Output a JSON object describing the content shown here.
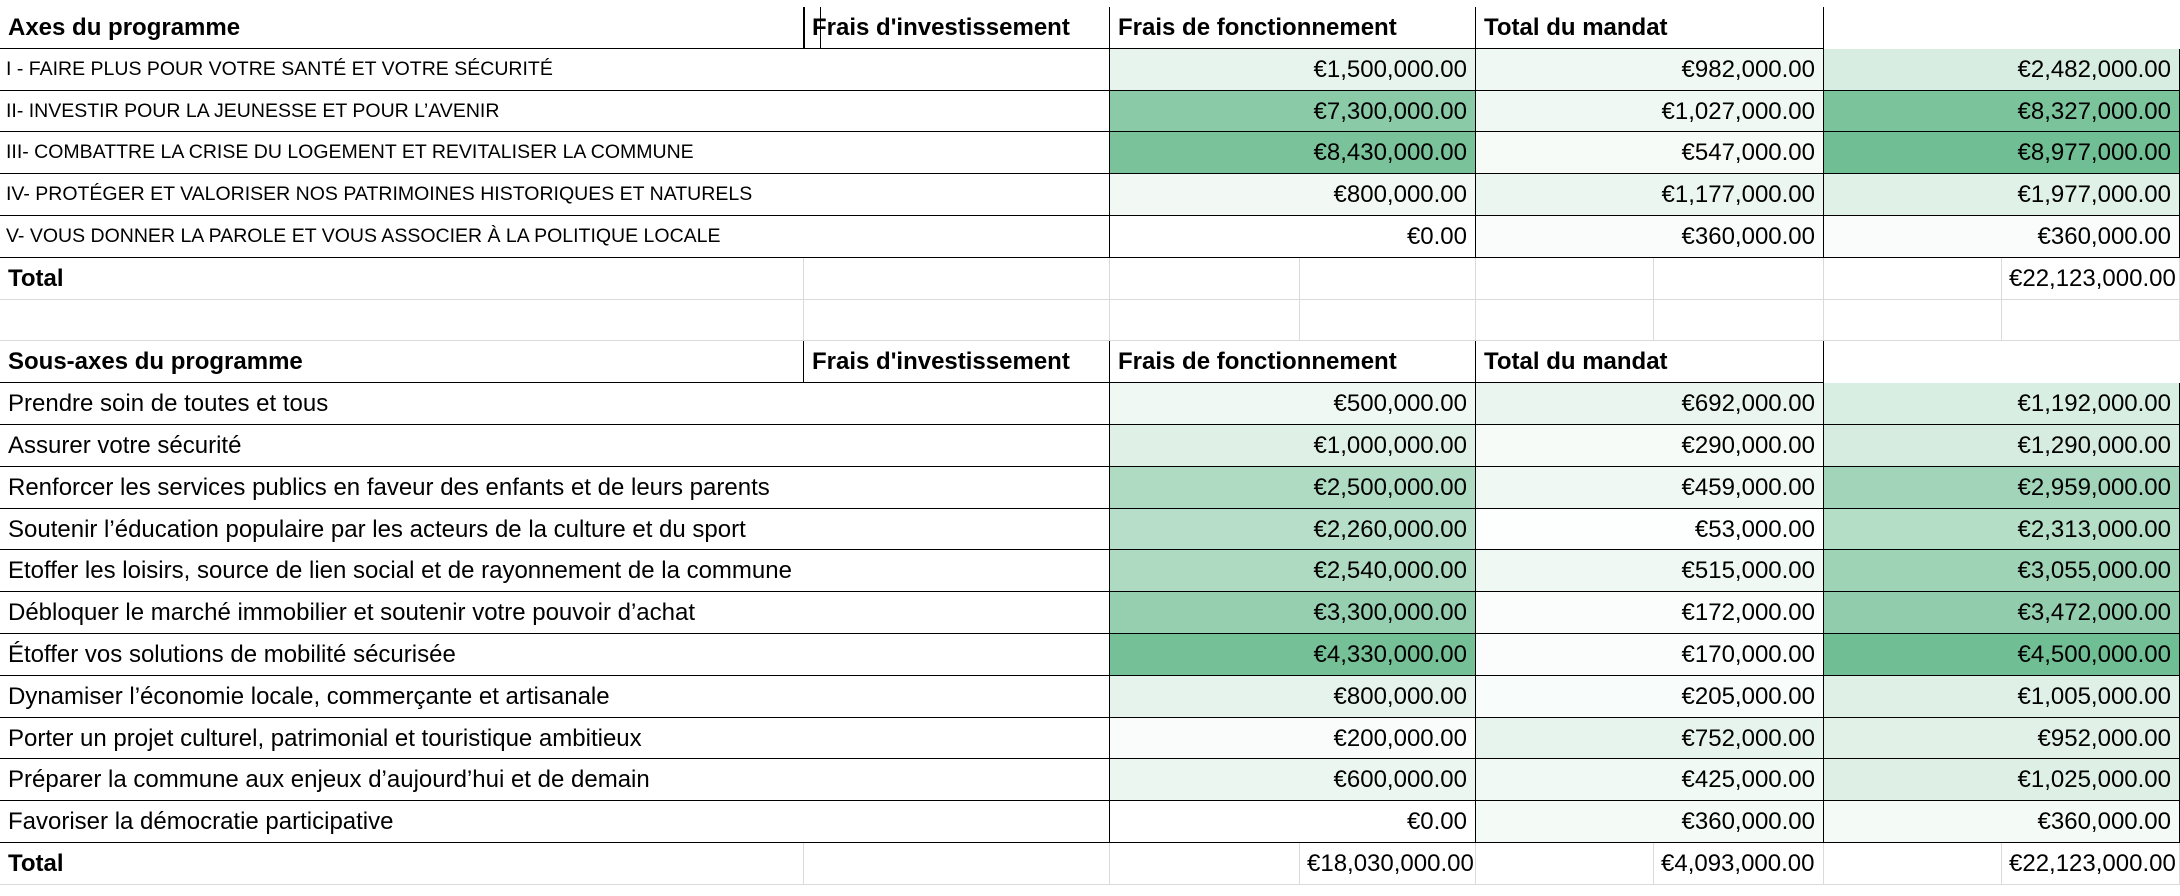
{
  "tables": [
    {
      "header": [
        "Axes du programme",
        "Frais d'investissement",
        "Frais de fonctionnement",
        "Total du mandat"
      ],
      "rows": [
        {
          "label": "I - FAIRE PLUS POUR VOTRE SANTÉ ET VOTRE SÉCURITÉ",
          "values": [
            {
              "value": 1500000,
              "label": "€1,500,000.00"
            },
            {
              "value": 982000,
              "label": "€982,000.00"
            },
            {
              "value": 2482000,
              "label": "€2,482,000.00"
            }
          ]
        },
        {
          "label": "II- INVESTIR POUR LA JEUNESSE ET POUR L’AVENIR",
          "values": [
            {
              "value": 7300000,
              "label": "€7,300,000.00"
            },
            {
              "value": 1027000,
              "label": "€1,027,000.00"
            },
            {
              "value": 8327000,
              "label": "€8,327,000.00"
            }
          ]
        },
        {
          "label": "III- COMBATTRE LA CRISE DU LOGEMENT ET REVITALISER LA COMMUNE",
          "values": [
            {
              "value": 8430000,
              "label": "€8,430,000.00"
            },
            {
              "value": 547000,
              "label": "€547,000.00"
            },
            {
              "value": 8977000,
              "label": "€8,977,000.00"
            }
          ]
        },
        {
          "label": "IV- PROTÉGER ET VALORISER NOS PATRIMOINES HISTORIQUES ET NATURELS",
          "values": [
            {
              "value": 800000,
              "label": "€800,000.00"
            },
            {
              "value": 1177000,
              "label": "€1,177,000.00"
            },
            {
              "value": 1977000,
              "label": "€1,977,000.00"
            }
          ]
        },
        {
          "label": "V- VOUS DONNER LA PAROLE ET VOUS ASSOCIER À LA POLITIQUE LOCALE",
          "values": [
            {
              "value": 0,
              "label": "€0.00"
            },
            {
              "value": 360000,
              "label": "€360,000.00"
            },
            {
              "value": 360000,
              "label": "€360,000.00"
            }
          ]
        }
      ],
      "total": {
        "label": "Total",
        "values": [
          null,
          null,
          {
            "value": 22123000,
            "label": "€22,123,000.00"
          }
        ]
      }
    },
    {
      "header": [
        "Sous-axes du programme",
        "Frais d'investissement",
        "Frais de fonctionnement",
        "Total du mandat"
      ],
      "rows": [
        {
          "label": "Prendre soin de toutes et tous",
          "values": [
            {
              "value": 500000,
              "label": "€500,000.00"
            },
            {
              "value": 692000,
              "label": "€692,000.00"
            },
            {
              "value": 1192000,
              "label": "€1,192,000.00"
            }
          ]
        },
        {
          "label": "Assurer votre sécurité",
          "values": [
            {
              "value": 1000000,
              "label": "€1,000,000.00"
            },
            {
              "value": 290000,
              "label": "€290,000.00"
            },
            {
              "value": 1290000,
              "label": "€1,290,000.00"
            }
          ]
        },
        {
          "label": "Renforcer les services publics en faveur des enfants et de leurs parents",
          "values": [
            {
              "value": 2500000,
              "label": "€2,500,000.00"
            },
            {
              "value": 459000,
              "label": "€459,000.00"
            },
            {
              "value": 2959000,
              "label": "€2,959,000.00"
            }
          ]
        },
        {
          "label": "Soutenir l’éducation populaire par les acteurs de la culture et du sport",
          "values": [
            {
              "value": 2260000,
              "label": "€2,260,000.00"
            },
            {
              "value": 53000,
              "label": "€53,000.00"
            },
            {
              "value": 2313000,
              "label": "€2,313,000.00"
            }
          ]
        },
        {
          "label": "Etoffer les loisirs, source de lien social et de rayonnement de la commune",
          "values": [
            {
              "value": 2540000,
              "label": "€2,540,000.00"
            },
            {
              "value": 515000,
              "label": "€515,000.00"
            },
            {
              "value": 3055000,
              "label": "€3,055,000.00"
            }
          ]
        },
        {
          "label": "Débloquer le marché immobilier et soutenir votre pouvoir d’achat",
          "values": [
            {
              "value": 3300000,
              "label": "€3,300,000.00"
            },
            {
              "value": 172000,
              "label": "€172,000.00"
            },
            {
              "value": 3472000,
              "label": "€3,472,000.00"
            }
          ]
        },
        {
          "label": "Étoffer vos solutions de mobilité sécurisée",
          "values": [
            {
              "value": 4330000,
              "label": "€4,330,000.00"
            },
            {
              "value": 170000,
              "label": "€170,000.00"
            },
            {
              "value": 4500000,
              "label": "€4,500,000.00"
            }
          ]
        },
        {
          "label": "Dynamiser l’économie locale, commerçante et artisanale",
          "values": [
            {
              "value": 800000,
              "label": "€800,000.00"
            },
            {
              "value": 205000,
              "label": "€205,000.00"
            },
            {
              "value": 1005000,
              "label": "€1,005,000.00"
            }
          ]
        },
        {
          "label": "Porter un projet culturel, patrimonial et touristique ambitieux",
          "values": [
            {
              "value": 200000,
              "label": "€200,000.00"
            },
            {
              "value": 752000,
              "label": "€752,000.00"
            },
            {
              "value": 952000,
              "label": "€952,000.00"
            }
          ]
        },
        {
          "label": "Préparer la commune aux enjeux d’aujourd’hui et de demain",
          "values": [
            {
              "value": 600000,
              "label": "€600,000.00"
            },
            {
              "value": 425000,
              "label": "€425,000.00"
            },
            {
              "value": 1025000,
              "label": "€1,025,000.00"
            }
          ]
        },
        {
          "label": "Favoriser la démocratie participative",
          "values": [
            {
              "value": 0,
              "label": "€0.00"
            },
            {
              "value": 360000,
              "label": "€360,000.00"
            },
            {
              "value": 360000,
              "label": "€360,000.00"
            }
          ]
        }
      ],
      "total": {
        "label": "Total",
        "values": [
          {
            "value": 18030000,
            "label": "€18,030,000.00"
          },
          {
            "value": 4093000,
            "label": "€4,093,000.00"
          },
          {
            "value": 22123000,
            "label": "€22,123,000.00"
          }
        ]
      }
    }
  ]
}
